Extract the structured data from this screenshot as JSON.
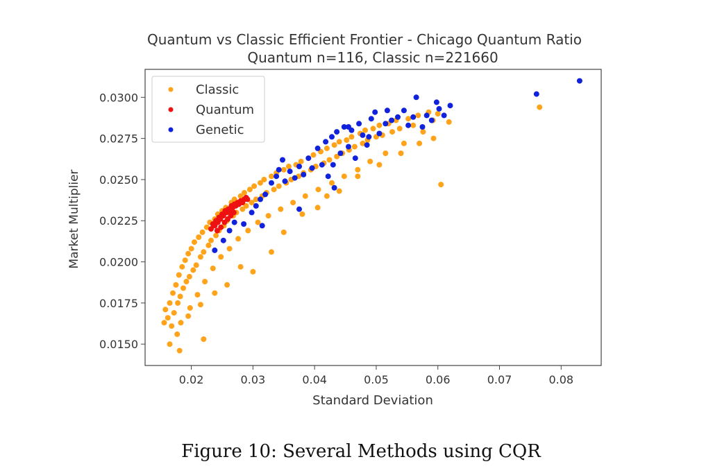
{
  "caption": "Figure 10: Several Methods using CQR",
  "chart_data": {
    "type": "scatter",
    "title": "Quantum vs Classic Efficient Frontier - Chicago Quantum Ratio",
    "subtitle": "Quantum n=116, Classic n=221660",
    "xlabel": "Standard Deviation",
    "ylabel": "Market Multiplier",
    "xlim": [
      0.0125,
      0.0865
    ],
    "ylim": [
      0.0137,
      0.0317
    ],
    "xticks": [
      0.02,
      0.03,
      0.04,
      0.05,
      0.06,
      0.07,
      0.08
    ],
    "xtick_labels": [
      "0.02",
      "0.03",
      "0.04",
      "0.05",
      "0.06",
      "0.07",
      "0.08"
    ],
    "yticks": [
      0.015,
      0.0175,
      0.02,
      0.0225,
      0.025,
      0.0275,
      0.03
    ],
    "ytick_labels": [
      "0.0150",
      "0.0175",
      "0.0200",
      "0.0225",
      "0.0250",
      "0.0275",
      "0.0300"
    ],
    "grid": false,
    "legend_position": "top-left",
    "series": [
      {
        "name": "Classic",
        "color": "#ffa31a",
        "points": [
          [
            0.0156,
            0.0163
          ],
          [
            0.0158,
            0.0171
          ],
          [
            0.0162,
            0.0166
          ],
          [
            0.0165,
            0.0175
          ],
          [
            0.0168,
            0.0161
          ],
          [
            0.017,
            0.0181
          ],
          [
            0.0172,
            0.0169
          ],
          [
            0.0175,
            0.0186
          ],
          [
            0.0177,
            0.0156
          ],
          [
            0.0178,
            0.0175
          ],
          [
            0.018,
            0.0192
          ],
          [
            0.0182,
            0.0179
          ],
          [
            0.0183,
            0.0163
          ],
          [
            0.0185,
            0.0197
          ],
          [
            0.0187,
            0.0184
          ],
          [
            0.019,
            0.0201
          ],
          [
            0.0192,
            0.0188
          ],
          [
            0.0195,
            0.0205
          ],
          [
            0.0197,
            0.0191
          ],
          [
            0.0198,
            0.0172
          ],
          [
            0.02,
            0.0208
          ],
          [
            0.0203,
            0.0195
          ],
          [
            0.0205,
            0.0212
          ],
          [
            0.0208,
            0.0198
          ],
          [
            0.021,
            0.018
          ],
          [
            0.0212,
            0.0215
          ],
          [
            0.0215,
            0.0203
          ],
          [
            0.0218,
            0.0218
          ],
          [
            0.022,
            0.0206
          ],
          [
            0.0222,
            0.0188
          ],
          [
            0.0225,
            0.0221
          ],
          [
            0.0228,
            0.021
          ],
          [
            0.023,
            0.0224
          ],
          [
            0.0232,
            0.0213
          ],
          [
            0.0235,
            0.0196
          ],
          [
            0.0238,
            0.0226
          ],
          [
            0.024,
            0.0216
          ],
          [
            0.0243,
            0.0229
          ],
          [
            0.0245,
            0.0219
          ],
          [
            0.0248,
            0.0203
          ],
          [
            0.025,
            0.0231
          ],
          [
            0.0253,
            0.0222
          ],
          [
            0.0256,
            0.0233
          ],
          [
            0.0258,
            0.0225
          ],
          [
            0.0262,
            0.0208
          ],
          [
            0.0265,
            0.0236
          ],
          [
            0.0268,
            0.0228
          ],
          [
            0.027,
            0.0238
          ],
          [
            0.0273,
            0.023
          ],
          [
            0.0276,
            0.0214
          ],
          [
            0.028,
            0.024
          ],
          [
            0.0283,
            0.0232
          ],
          [
            0.0286,
            0.0242
          ],
          [
            0.0289,
            0.0234
          ],
          [
            0.0292,
            0.0219
          ],
          [
            0.0295,
            0.0244
          ],
          [
            0.0298,
            0.0236
          ],
          [
            0.0302,
            0.0246
          ],
          [
            0.0305,
            0.0238
          ],
          [
            0.0308,
            0.0224
          ],
          [
            0.0312,
            0.0248
          ],
          [
            0.0315,
            0.024
          ],
          [
            0.0318,
            0.025
          ],
          [
            0.0322,
            0.0242
          ],
          [
            0.0325,
            0.0228
          ],
          [
            0.033,
            0.0252
          ],
          [
            0.0334,
            0.0244
          ],
          [
            0.0338,
            0.0254
          ],
          [
            0.0342,
            0.0246
          ],
          [
            0.0345,
            0.0232
          ],
          [
            0.035,
            0.0256
          ],
          [
            0.0354,
            0.0248
          ],
          [
            0.0358,
            0.0258
          ],
          [
            0.0362,
            0.025
          ],
          [
            0.0365,
            0.0236
          ],
          [
            0.037,
            0.0259
          ],
          [
            0.0374,
            0.0252
          ],
          [
            0.0378,
            0.0261
          ],
          [
            0.0382,
            0.0254
          ],
          [
            0.0385,
            0.024
          ],
          [
            0.039,
            0.0263
          ],
          [
            0.0394,
            0.0256
          ],
          [
            0.0398,
            0.0265
          ],
          [
            0.0402,
            0.0258
          ],
          [
            0.0406,
            0.0244
          ],
          [
            0.041,
            0.0267
          ],
          [
            0.0415,
            0.026
          ],
          [
            0.042,
            0.0269
          ],
          [
            0.0424,
            0.0262
          ],
          [
            0.0428,
            0.0248
          ],
          [
            0.0432,
            0.0271
          ],
          [
            0.0436,
            0.0264
          ],
          [
            0.044,
            0.0273
          ],
          [
            0.0445,
            0.0266
          ],
          [
            0.0448,
            0.0252
          ],
          [
            0.0452,
            0.0274
          ],
          [
            0.0456,
            0.0268
          ],
          [
            0.046,
            0.0276
          ],
          [
            0.0465,
            0.027
          ],
          [
            0.047,
            0.0256
          ],
          [
            0.0474,
            0.0278
          ],
          [
            0.0478,
            0.0272
          ],
          [
            0.0482,
            0.028
          ],
          [
            0.0486,
            0.0274
          ],
          [
            0.049,
            0.0261
          ],
          [
            0.0495,
            0.0281
          ],
          [
            0.05,
            0.0276
          ],
          [
            0.0505,
            0.0283
          ],
          [
            0.051,
            0.0277
          ],
          [
            0.0515,
            0.0266
          ],
          [
            0.052,
            0.0284
          ],
          [
            0.0526,
            0.0279
          ],
          [
            0.0532,
            0.0286
          ],
          [
            0.0538,
            0.0281
          ],
          [
            0.0545,
            0.0272
          ],
          [
            0.0552,
            0.0287
          ],
          [
            0.056,
            0.0283
          ],
          [
            0.0568,
            0.0289
          ],
          [
            0.0576,
            0.0279
          ],
          [
            0.0585,
            0.0291
          ],
          [
            0.0592,
            0.0286
          ],
          [
            0.06,
            0.029
          ],
          [
            0.0618,
            0.0285
          ],
          [
            0.0605,
            0.0247
          ],
          [
            0.0765,
            0.0294
          ],
          [
            0.022,
            0.0153
          ],
          [
            0.0181,
            0.0146
          ],
          [
            0.0165,
            0.015
          ],
          [
            0.03,
            0.0194
          ],
          [
            0.033,
            0.0206
          ],
          [
            0.038,
            0.0229
          ],
          [
            0.042,
            0.024
          ],
          [
            0.047,
            0.0252
          ],
          [
            0.0505,
            0.0259
          ],
          [
            0.054,
            0.0266
          ],
          [
            0.057,
            0.0272
          ],
          [
            0.0593,
            0.0275
          ],
          [
            0.0258,
            0.0186
          ],
          [
            0.028,
            0.0197
          ],
          [
            0.035,
            0.0218
          ],
          [
            0.0405,
            0.0233
          ],
          [
            0.044,
            0.0243
          ],
          [
            0.0215,
            0.0174
          ],
          [
            0.0238,
            0.0181
          ],
          [
            0.0195,
            0.0167
          ]
        ]
      },
      {
        "name": "Quantum",
        "color": "#ee1111",
        "points": [
          [
            0.0232,
            0.022
          ],
          [
            0.0235,
            0.0223
          ],
          [
            0.0238,
            0.0222
          ],
          [
            0.024,
            0.0225
          ],
          [
            0.0243,
            0.0224
          ],
          [
            0.0245,
            0.0227
          ],
          [
            0.0247,
            0.0226
          ],
          [
            0.025,
            0.0229
          ],
          [
            0.0252,
            0.0228
          ],
          [
            0.0255,
            0.0231
          ],
          [
            0.0257,
            0.023
          ],
          [
            0.026,
            0.0232
          ],
          [
            0.0262,
            0.0231
          ],
          [
            0.0265,
            0.0234
          ],
          [
            0.0267,
            0.0233
          ],
          [
            0.027,
            0.0235
          ],
          [
            0.0272,
            0.0234
          ],
          [
            0.0275,
            0.0236
          ],
          [
            0.0277,
            0.0235
          ],
          [
            0.028,
            0.0237
          ],
          [
            0.0283,
            0.0236
          ],
          [
            0.0286,
            0.0238
          ],
          [
            0.0289,
            0.0239
          ],
          [
            0.0291,
            0.0238
          ],
          [
            0.0242,
            0.0219
          ],
          [
            0.0248,
            0.0221
          ],
          [
            0.0254,
            0.0224
          ],
          [
            0.0259,
            0.0226
          ],
          [
            0.0264,
            0.0228
          ],
          [
            0.0269,
            0.023
          ]
        ]
      },
      {
        "name": "Genetic",
        "color": "#1122dd",
        "points": [
          [
            0.0238,
            0.0207
          ],
          [
            0.0252,
            0.0213
          ],
          [
            0.0262,
            0.0219
          ],
          [
            0.027,
            0.0224
          ],
          [
            0.0285,
            0.0223
          ],
          [
            0.0298,
            0.023
          ],
          [
            0.0305,
            0.0234
          ],
          [
            0.0312,
            0.0238
          ],
          [
            0.032,
            0.0241
          ],
          [
            0.033,
            0.0248
          ],
          [
            0.0338,
            0.0252
          ],
          [
            0.0342,
            0.0256
          ],
          [
            0.0348,
            0.0262
          ],
          [
            0.0352,
            0.0249
          ],
          [
            0.036,
            0.0255
          ],
          [
            0.0368,
            0.0251
          ],
          [
            0.0375,
            0.0258
          ],
          [
            0.0382,
            0.0253
          ],
          [
            0.039,
            0.0263
          ],
          [
            0.0396,
            0.0257
          ],
          [
            0.0405,
            0.0269
          ],
          [
            0.0412,
            0.0259
          ],
          [
            0.0418,
            0.0273
          ],
          [
            0.0422,
            0.0252
          ],
          [
            0.0428,
            0.0276
          ],
          [
            0.0432,
            0.0245
          ],
          [
            0.0436,
            0.0279
          ],
          [
            0.0442,
            0.0266
          ],
          [
            0.0448,
            0.0282
          ],
          [
            0.0455,
            0.027
          ],
          [
            0.046,
            0.028
          ],
          [
            0.0466,
            0.0263
          ],
          [
            0.0472,
            0.0284
          ],
          [
            0.0478,
            0.0277
          ],
          [
            0.0485,
            0.0271
          ],
          [
            0.0492,
            0.0287
          ],
          [
            0.0498,
            0.0291
          ],
          [
            0.0505,
            0.0278
          ],
          [
            0.0515,
            0.0284
          ],
          [
            0.0525,
            0.0286
          ],
          [
            0.0535,
            0.0288
          ],
          [
            0.0545,
            0.0292
          ],
          [
            0.0552,
            0.0283
          ],
          [
            0.056,
            0.0288
          ],
          [
            0.0565,
            0.03
          ],
          [
            0.0575,
            0.0282
          ],
          [
            0.0582,
            0.0289
          ],
          [
            0.059,
            0.0286
          ],
          [
            0.0598,
            0.0297
          ],
          [
            0.0602,
            0.0293
          ],
          [
            0.061,
            0.0289
          ],
          [
            0.062,
            0.0295
          ],
          [
            0.076,
            0.0302
          ],
          [
            0.083,
            0.031
          ],
          [
            0.0315,
            0.0222
          ],
          [
            0.0375,
            0.0232
          ],
          [
            0.043,
            0.0259
          ],
          [
            0.0455,
            0.0282
          ],
          [
            0.0488,
            0.0276
          ],
          [
            0.0518,
            0.0292
          ]
        ]
      }
    ]
  }
}
